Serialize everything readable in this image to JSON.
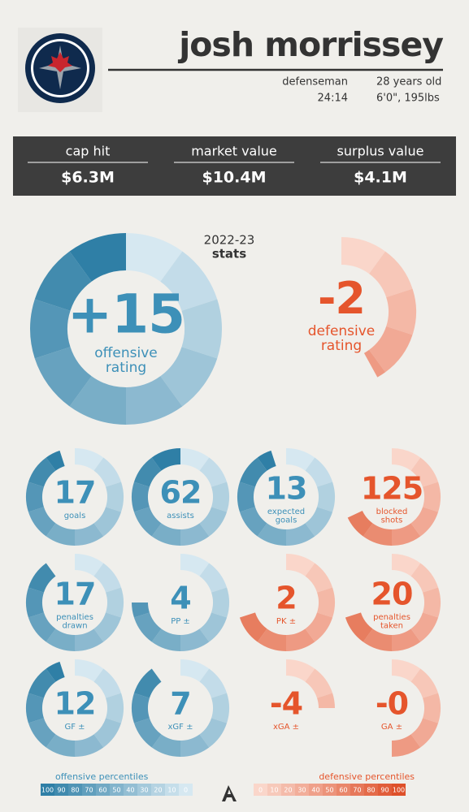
{
  "header": {
    "name": "josh morrissey",
    "position": "defenseman",
    "age": "28 years old",
    "toi": "24:14",
    "size": "6'0\", 195lbs"
  },
  "contract": [
    {
      "label": "cap hit",
      "value": "$6.3M"
    },
    {
      "label": "market value",
      "value": "$10.4M"
    },
    {
      "label": "surplus value",
      "value": "$4.1M"
    }
  ],
  "season": {
    "year": "2022-23",
    "label": "stats"
  },
  "ratings": [
    {
      "value": "+15",
      "label": [
        "offensive",
        "rating"
      ],
      "percentile": 100,
      "palette": "blue"
    },
    {
      "value": "-2",
      "label": [
        "defensive",
        "rating"
      ],
      "percentile": 42,
      "palette": "red"
    }
  ],
  "stats": [
    {
      "value": "17",
      "label": [
        "goals"
      ],
      "percentile": 95,
      "palette": "blue"
    },
    {
      "value": "62",
      "label": [
        "assists"
      ],
      "percentile": 100,
      "palette": "blue"
    },
    {
      "value": "13",
      "label": [
        "expected",
        "goals"
      ],
      "percentile": 95,
      "palette": "blue"
    },
    {
      "value": "125",
      "label": [
        "blocked",
        "shots"
      ],
      "percentile": 68,
      "palette": "red"
    },
    {
      "value": "17",
      "label": [
        "penalties",
        "drawn"
      ],
      "percentile": 90,
      "palette": "blue"
    },
    {
      "value": "4",
      "label": [
        "PP ±"
      ],
      "percentile": 75,
      "palette": "blue"
    },
    {
      "value": "2",
      "label": [
        "PK ±"
      ],
      "percentile": 70,
      "palette": "red"
    },
    {
      "value": "20",
      "label": [
        "penalties",
        "taken"
      ],
      "percentile": 70,
      "palette": "red"
    },
    {
      "value": "12",
      "label": [
        "GF ±"
      ],
      "percentile": 95,
      "palette": "blue"
    },
    {
      "value": "7",
      "label": [
        "xGF ±"
      ],
      "percentile": 90,
      "palette": "blue"
    },
    {
      "value": "-4",
      "label": [
        "xGA ±"
      ],
      "percentile": 25,
      "palette": "red"
    },
    {
      "value": "-0",
      "label": [
        "GA ±"
      ],
      "percentile": 50,
      "palette": "red"
    }
  ],
  "legend": {
    "offensive": {
      "title": "offensive percentiles",
      "ticks": [
        100,
        90,
        80,
        70,
        60,
        50,
        40,
        30,
        20,
        10,
        0
      ]
    },
    "defensive": {
      "title": "defensive percentiles",
      "ticks": [
        0,
        10,
        20,
        30,
        40,
        50,
        60,
        70,
        80,
        90,
        100
      ]
    }
  }
}
